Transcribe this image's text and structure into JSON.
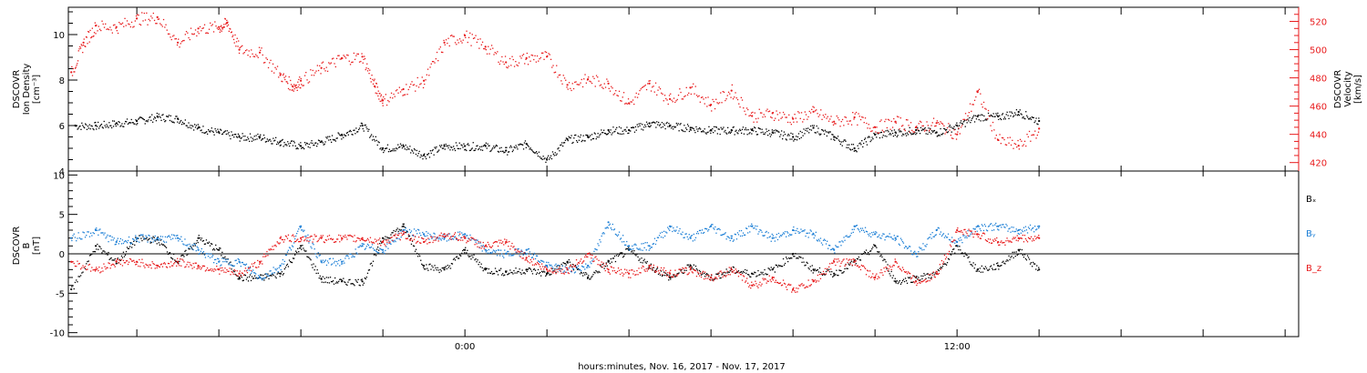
{
  "xlabel": "hours:minutes, Nov. 16, 2017 - Nov. 17, 2017",
  "chart_data": [
    {
      "type": "scatter",
      "x_unit": "hours relative to 2017-11-17 00:00",
      "xlim": [
        -9.67,
        20.33
      ],
      "x_ticks": [
        {
          "x": 0,
          "label": "0:00"
        },
        {
          "x": 12,
          "label": "12:00"
        }
      ],
      "ylabel_left": [
        "DSCOVR",
        "Ion Density",
        "[cm⁻³]"
      ],
      "ylim_left": [
        4,
        11.2
      ],
      "yticks_left": [
        4,
        6,
        8,
        10
      ],
      "ylabel_right": [
        "DSCOVR",
        "Velocity",
        "[km/s]"
      ],
      "ylim_right": [
        414,
        530
      ],
      "yticks_right": [
        420,
        440,
        460,
        480,
        500,
        520
      ],
      "series": [
        {
          "name": "Ion Density",
          "axis": "left",
          "color": "#000000",
          "x": [
            -9.5,
            -9.0,
            -8.5,
            -8.0,
            -7.5,
            -7.0,
            -6.5,
            -6.0,
            -5.5,
            -5.0,
            -4.5,
            -4.0,
            -3.5,
            -3.0,
            -2.5,
            -2.0,
            -1.5,
            -1.0,
            -0.5,
            0.0,
            0.5,
            1.0,
            1.5,
            2.0,
            2.5,
            3.0,
            3.5,
            4.0,
            4.5,
            5.0,
            5.5,
            6.0,
            6.5,
            7.0,
            7.5,
            8.0,
            8.5,
            9.0,
            9.5,
            10.0,
            10.5,
            11.0,
            11.5,
            12.0,
            12.5,
            13.0,
            13.5,
            14.0
          ],
          "y": [
            6.0,
            6.0,
            6.1,
            6.2,
            6.4,
            6.3,
            5.9,
            5.7,
            5.5,
            5.5,
            5.3,
            5.1,
            5.3,
            5.6,
            6.0,
            5.0,
            5.1,
            4.7,
            5.1,
            5.1,
            5.1,
            4.9,
            5.2,
            4.5,
            5.4,
            5.5,
            5.8,
            5.8,
            6.1,
            6.0,
            5.9,
            5.8,
            5.8,
            5.8,
            5.7,
            5.5,
            5.9,
            5.5,
            5.0,
            5.6,
            5.7,
            5.8,
            5.7,
            6.0,
            6.4,
            6.4,
            6.6,
            6.2
          ]
        },
        {
          "name": "Velocity",
          "axis": "right",
          "color": "#e8191b",
          "x": [
            -9.6,
            -9.3,
            -9.0,
            -8.5,
            -8.0,
            -7.5,
            -7.0,
            -6.5,
            -6.0,
            -5.8,
            -5.5,
            -5.0,
            -4.5,
            -4.2,
            -4.0,
            -3.5,
            -3.0,
            -2.5,
            -2.2,
            -2.0,
            -1.5,
            -1.0,
            -0.5,
            0.0,
            0.5,
            1.0,
            1.5,
            2.0,
            2.5,
            3.0,
            3.5,
            4.0,
            4.5,
            5.0,
            5.5,
            6.0,
            6.5,
            7.0,
            7.5,
            8.0,
            8.5,
            9.0,
            9.5,
            10.0,
            10.5,
            11.0,
            11.5,
            12.0,
            12.5,
            13.0,
            13.5,
            14.0
          ],
          "y": [
            484,
            505,
            517,
            516,
            522,
            523,
            505,
            515,
            516,
            519,
            500,
            498,
            482,
            474,
            478,
            487,
            494,
            495,
            474,
            464,
            472,
            478,
            505,
            510,
            502,
            491,
            494,
            495,
            475,
            479,
            476,
            462,
            476,
            465,
            473,
            461,
            471,
            453,
            455,
            451,
            456,
            449,
            452,
            445,
            449,
            445,
            448,
            440,
            470,
            436,
            432,
            444
          ]
        }
      ]
    },
    {
      "type": "scatter",
      "x_unit": "hours relative to 2017-11-17 00:00",
      "xlim": [
        -9.67,
        20.33
      ],
      "ylabel": [
        "DSCOVR",
        "B",
        "[nT]"
      ],
      "ylim": [
        -10.5,
        10.5
      ],
      "yticks": [
        -10,
        -5,
        0,
        5,
        10
      ],
      "zero_line": true,
      "legend": [
        "Bₓ",
        "Bᵧ",
        "B_z"
      ],
      "series": [
        {
          "name": "Bx",
          "color": "#000000",
          "x": [
            -9.6,
            -9.0,
            -8.5,
            -8.0,
            -7.5,
            -7.0,
            -6.5,
            -6.0,
            -5.5,
            -5.0,
            -4.5,
            -4.0,
            -3.5,
            -3.0,
            -2.5,
            -2.0,
            -1.5,
            -1.0,
            -0.5,
            0.0,
            0.5,
            1.0,
            1.5,
            2.0,
            2.5,
            3.0,
            3.5,
            4.0,
            4.5,
            5.0,
            5.5,
            6.0,
            6.5,
            7.0,
            7.5,
            8.0,
            8.5,
            9.0,
            9.5,
            10.0,
            10.5,
            11.0,
            11.5,
            12.0,
            12.5,
            13.0,
            13.5,
            14.0
          ],
          "y": [
            -4.5,
            1.0,
            -1.0,
            2.0,
            1.8,
            -1.0,
            2.0,
            0.5,
            -3.0,
            -3.0,
            -2.5,
            1.0,
            -3.2,
            -3.5,
            -3.5,
            2.0,
            3.5,
            -1.5,
            -2.0,
            0.5,
            -2.0,
            -2.3,
            -2.0,
            -2.5,
            -1.0,
            -3.0,
            -1.0,
            0.5,
            -1.5,
            -3.0,
            -1.5,
            -3.0,
            -2.0,
            -2.5,
            -2.0,
            0.0,
            -2.0,
            -2.5,
            -1.0,
            1.0,
            -3.5,
            -3.0,
            -2.5,
            1.0,
            -2.0,
            -1.5,
            0.5,
            -2.0
          ]
        },
        {
          "name": "By",
          "color": "#1c7fd6",
          "x": [
            -9.6,
            -9.0,
            -8.5,
            -8.0,
            -7.5,
            -7.0,
            -6.5,
            -6.0,
            -5.5,
            -5.0,
            -4.5,
            -4.0,
            -3.5,
            -3.0,
            -2.5,
            -2.0,
            -1.5,
            -1.0,
            -0.5,
            0.0,
            0.5,
            1.0,
            1.5,
            2.0,
            2.5,
            3.0,
            3.5,
            4.0,
            4.5,
            5.0,
            5.5,
            6.0,
            6.5,
            7.0,
            7.5,
            8.0,
            8.5,
            9.0,
            9.5,
            10.0,
            10.5,
            11.0,
            11.5,
            12.0,
            12.5,
            13.0,
            13.5,
            14.0
          ],
          "y": [
            2.0,
            3.0,
            1.5,
            2.0,
            2.0,
            2.0,
            0.5,
            -1.0,
            -1.0,
            -3.0,
            -1.5,
            3.5,
            -1.0,
            -1.0,
            1.0,
            0.5,
            3.0,
            2.5,
            2.0,
            2.5,
            0.5,
            0.0,
            0.5,
            -1.5,
            -2.0,
            -1.5,
            4.0,
            1.0,
            1.0,
            3.5,
            2.0,
            3.5,
            2.0,
            3.5,
            2.0,
            3.0,
            2.5,
            0.5,
            3.5,
            2.5,
            2.0,
            0.0,
            3.0,
            1.5,
            3.5,
            3.5,
            3.0,
            3.5
          ]
        },
        {
          "name": "Bz",
          "color": "#e8191b",
          "x": [
            -9.6,
            -9.0,
            -8.5,
            -8.0,
            -7.5,
            -7.0,
            -6.5,
            -6.0,
            -5.5,
            -5.0,
            -4.5,
            -4.0,
            -3.5,
            -3.0,
            -2.5,
            -2.0,
            -1.5,
            -1.0,
            -0.5,
            0.0,
            0.5,
            1.0,
            1.5,
            2.0,
            2.5,
            3.0,
            3.5,
            4.0,
            4.5,
            5.0,
            5.5,
            6.0,
            6.5,
            7.0,
            7.5,
            8.0,
            8.5,
            9.0,
            9.5,
            10.0,
            10.5,
            11.0,
            11.5,
            12.0,
            12.5,
            13.0,
            13.5,
            14.0
          ],
          "y": [
            -1.0,
            -2.0,
            -1.0,
            -1.0,
            -1.5,
            -1.0,
            -1.5,
            -2.0,
            -2.5,
            -1.0,
            2.0,
            2.0,
            2.0,
            2.0,
            2.0,
            1.5,
            2.5,
            1.5,
            2.5,
            2.0,
            1.0,
            1.5,
            -0.5,
            -2.0,
            -2.0,
            0.0,
            -2.0,
            -2.5,
            -1.5,
            -2.5,
            -2.0,
            -3.0,
            -2.0,
            -4.0,
            -3.0,
            -4.5,
            -3.5,
            -1.0,
            -1.0,
            -3.0,
            -1.0,
            -3.5,
            -2.5,
            3.0,
            2.5,
            1.5,
            2.0,
            2.0
          ]
        }
      ]
    }
  ]
}
